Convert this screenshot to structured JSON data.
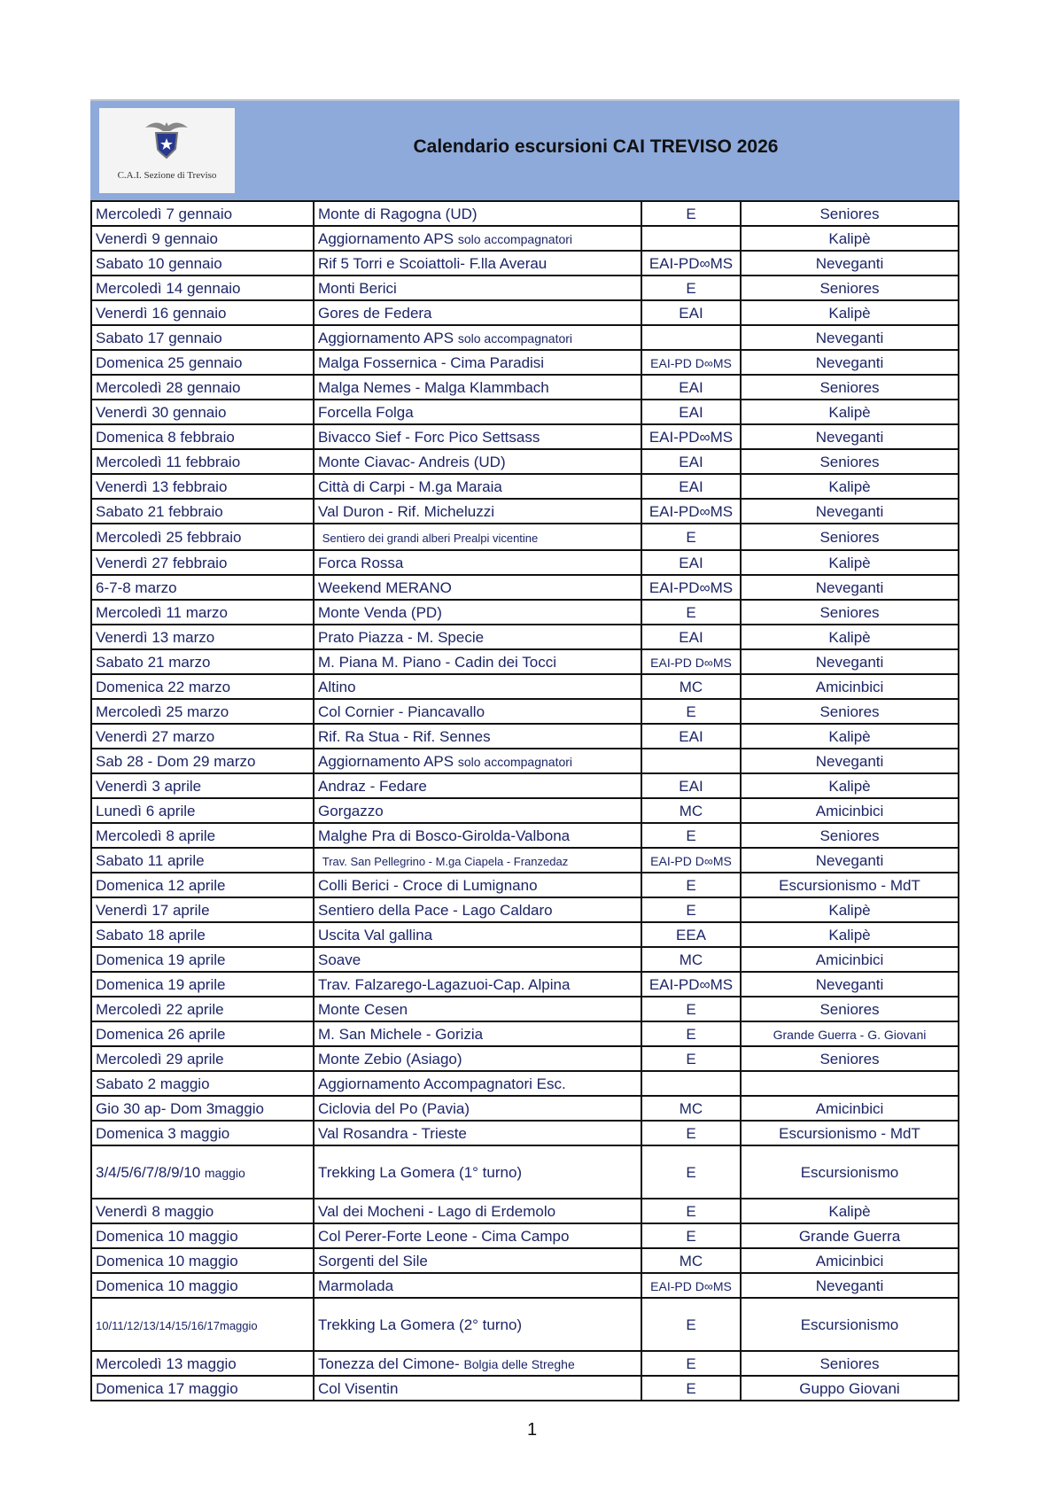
{
  "header": {
    "title": "Calendario escursioni  CAI  TREVISO  2026",
    "logo_text": "C.A.I. Sezione di Treviso",
    "background_color": "#8eaadb"
  },
  "rows": [
    {
      "date": "Mercoledì 7 gennaio",
      "activity": "Monte di Ragogna (UD)",
      "difficulty": "E",
      "group": "Seniores"
    },
    {
      "date": "Venerdì 9 gennaio",
      "activity": "Aggiornamento APS",
      "activity_note": "solo accompagnatori",
      "difficulty": "",
      "group": "Kalipè"
    },
    {
      "date": "Sabato 10 gennaio",
      "activity": "Rif 5 Torri e Scoiattoli- F.lla Averau",
      "difficulty": "EAI-PD∞MS",
      "group": "Neveganti"
    },
    {
      "date": "Mercoledì 14 gennaio",
      "activity": "Monti Berici",
      "difficulty": "E",
      "group": "Seniores"
    },
    {
      "date": "Venerdì 16 gennaio",
      "activity": "Gores de Federa",
      "difficulty": "EAI",
      "group": "Kalipè"
    },
    {
      "date": "Sabato 17 gennaio",
      "activity": "Aggiornamento APS",
      "activity_note": "solo accompagnatori",
      "difficulty": "",
      "group": "Neveganti"
    },
    {
      "date": "Domenica 25 gennaio",
      "activity": "Malga Fossernica - Cima Paradisi",
      "difficulty": "EAI-PD D∞MS",
      "group": "Neveganti"
    },
    {
      "date": "Mercoledì 28 gennaio",
      "activity": "Malga Nemes - Malga Klammbach",
      "difficulty": "EAI",
      "group": "Seniores"
    },
    {
      "date": "Venerdì 30 gennaio",
      "activity": "Forcella Folga",
      "difficulty": "EAI",
      "group": "Kalipè"
    },
    {
      "date": "Domenica 8 febbraio",
      "activity": "Bivacco Sief - Forc Pico Settsass",
      "difficulty": "EAI-PD∞MS",
      "group": "Neveganti"
    },
    {
      "date": "Mercoledì 11 febbraio",
      "activity": "Monte Ciavac- Andreis (UD)",
      "difficulty": "EAI",
      "group": "Seniores"
    },
    {
      "date": "Venerdì 13 febbraio",
      "activity": "Città di Carpi - M.ga Maraia",
      "difficulty": "EAI",
      "group": "Kalipè"
    },
    {
      "date": "Sabato 21 febbraio",
      "activity": "Val Duron - Rif. Micheluzzi",
      "difficulty": "EAI-PD∞MS",
      "group": "Neveganti"
    },
    {
      "date": "Mercoledì 25 febbraio",
      "activity": "",
      "activity_note": "Sentiero dei grandi alberi Prealpi vicentine",
      "difficulty": "E",
      "group": "Seniores"
    },
    {
      "date": "Venerdì 27 febbraio",
      "activity": "Forca Rossa",
      "difficulty": "EAI",
      "group": "Kalipè"
    },
    {
      "date": "6-7-8 marzo",
      "activity": "Weekend MERANO",
      "difficulty": "EAI-PD∞MS",
      "group": "Neveganti"
    },
    {
      "date": "Mercoledì 11 marzo",
      "activity": "Monte Venda (PD)",
      "difficulty": "E",
      "group": "Seniores"
    },
    {
      "date": "Venerdì 13 marzo",
      "activity": "Prato Piazza - M. Specie",
      "difficulty": "EAI",
      "group": "Kalipè"
    },
    {
      "date": "Sabato 21 marzo",
      "activity": "M. Piana M. Piano - Cadin dei Tocci",
      "difficulty": "EAI-PD D∞MS",
      "group": "Neveganti"
    },
    {
      "date": "Domenica 22 marzo",
      "activity": "Altino",
      "difficulty": "MC",
      "group": "Amicinbici"
    },
    {
      "date": "Mercoledì 25 marzo",
      "activity": "Col Cornier - Piancavallo",
      "difficulty": "E",
      "group": "Seniores"
    },
    {
      "date": "Venerdì 27 marzo",
      "activity": "Rif. Ra Stua - Rif. Sennes",
      "difficulty": "EAI",
      "group": "Kalipè"
    },
    {
      "date": "Sab 28 - Dom 29 marzo",
      "activity": "Aggiornamento APS",
      "activity_note": "solo accompagnatori",
      "difficulty": "",
      "group": "Neveganti"
    },
    {
      "date": "Venerdì 3 aprile",
      "activity": "Andraz - Fedare",
      "difficulty": "EAI",
      "group": "Kalipè"
    },
    {
      "date": "Lunedì 6 aprile",
      "activity": "Gorgazzo",
      "difficulty": "MC",
      "group": "Amicinbici"
    },
    {
      "date": "Mercoledì 8 aprile",
      "activity": "Malghe Pra di Bosco-Girolda-Valbona",
      "difficulty": "E",
      "group": "Seniores"
    },
    {
      "date": "Sabato 11 aprile",
      "activity": "",
      "activity_note": "Trav. San Pellegrino - M.ga Ciapela - Franzedaz",
      "difficulty": "EAI-PD D∞MS",
      "group": "Neveganti"
    },
    {
      "date": "Domenica 12 aprile",
      "activity": "Colli Berici - Croce di Lumignano",
      "difficulty": "E",
      "group": "Escursionismo - MdT"
    },
    {
      "date": "Venerdì 17 aprile",
      "activity": "Sentiero della Pace - Lago Caldaro",
      "difficulty": "E",
      "group": "Kalipè"
    },
    {
      "date": "Sabato 18 aprile",
      "activity": "Uscita Val gallina",
      "difficulty": "EEA",
      "group": "Kalipè"
    },
    {
      "date": "Domenica 19 aprile",
      "activity": "Soave",
      "difficulty": "MC",
      "group": "Amicinbici"
    },
    {
      "date": "Domenica 19 aprile",
      "activity": "Trav.  Falzarego-Lagazuoi-Cap. Alpina",
      "difficulty": "EAI-PD∞MS",
      "group": "Neveganti"
    },
    {
      "date": "Mercoledì 22 aprile",
      "activity": "Monte Cesen",
      "difficulty": "E",
      "group": "Seniores"
    },
    {
      "date": "Domenica 26 aprile",
      "activity": "M. San Michele - Gorizia",
      "difficulty": "E",
      "group": "Grande Guerra - G. Giovani"
    },
    {
      "date": "Mercoledì 29 aprile",
      "activity": "Monte Zebio (Asiago)",
      "difficulty": "E",
      "group": "Seniores"
    },
    {
      "date": "Sabato 2 maggio",
      "activity": "Aggiornamento Accompagnatori Esc.",
      "difficulty": "",
      "group": ""
    },
    {
      "date": "Gio 30 ap- Dom 3maggio",
      "activity": "Ciclovia del Po (Pavia)",
      "difficulty": "MC",
      "group": "Amicinbici"
    },
    {
      "date": "Domenica 3 maggio",
      "activity": "Val Rosandra - Trieste",
      "difficulty": "E",
      "group": "Escursionismo - MdT"
    },
    {
      "date": "3/4/5/6/7/8/9/10",
      "date_note": "maggio",
      "activity": "Trekking La Gomera (1° turno)",
      "difficulty": "E",
      "group": "Escursionismo"
    },
    {
      "date": "Venerdì 8 maggio",
      "activity": "Val dei Mocheni - Lago di Erdemolo",
      "difficulty": "E",
      "group": "Kalipè"
    },
    {
      "date": "Domenica 10 maggio",
      "activity": "Col Perer-Forte Leone - Cima Campo",
      "difficulty": "E",
      "group": "Grande Guerra"
    },
    {
      "date": "Domenica 10 maggio",
      "activity": "Sorgenti del Sile",
      "difficulty": "MC",
      "group": "Amicinbici"
    },
    {
      "date": "Domenica 10 maggio",
      "activity": "Marmolada",
      "difficulty": "EAI-PD D∞MS",
      "group": "Neveganti"
    },
    {
      "date": "",
      "date_note": "10/11/12/13/14/15/16/17maggio",
      "activity": "Trekking La Gomera (2° turno)",
      "difficulty": "E",
      "group": "Escursionismo"
    },
    {
      "date": "Mercoledì 13 maggio",
      "activity": "Tonezza del Cimone-",
      "activity_note": "Bolgia delle Streghe",
      "difficulty": "E",
      "group": "Seniores"
    },
    {
      "date": "Domenica 17 maggio",
      "activity": "Col Visentin",
      "difficulty": "E",
      "group": "Guppo Giovani"
    }
  ],
  "page_number": "1"
}
